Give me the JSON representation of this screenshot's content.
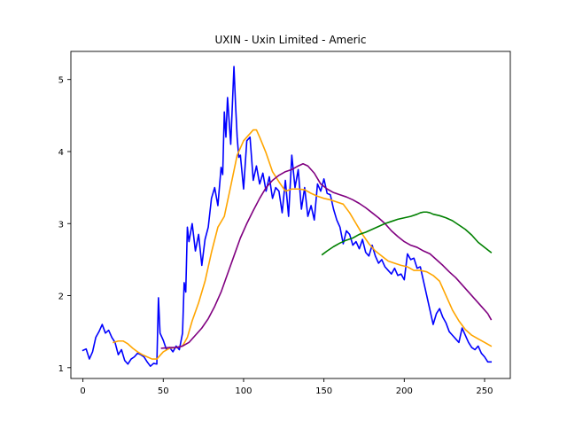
{
  "chart_data": {
    "type": "line",
    "title": "UXIN - Uxin Limited - Americ",
    "xlabel": "",
    "ylabel": "",
    "xlim": [
      -7.5,
      266
    ],
    "ylim": [
      0.85,
      5.39
    ],
    "x_ticks": [
      0,
      50,
      100,
      150,
      200,
      250
    ],
    "y_ticks": [
      1,
      2,
      3,
      4,
      5
    ],
    "grid": false,
    "legend": "none",
    "series": [
      {
        "color": "#0000ff",
        "x": [
          0,
          2,
          4,
          6,
          8,
          10,
          12,
          14,
          16,
          18,
          20,
          22,
          24,
          26,
          28,
          30,
          32,
          34,
          36,
          38,
          40,
          42,
          44,
          46,
          47,
          48,
          50,
          52,
          54,
          56,
          58,
          60,
          62,
          63,
          64,
          65,
          66,
          68,
          70,
          72,
          74,
          76,
          78,
          80,
          82,
          84,
          86,
          87,
          88,
          89,
          90,
          92,
          94,
          95,
          96,
          97,
          98,
          100,
          102,
          104,
          106,
          108,
          110,
          112,
          114,
          116,
          118,
          120,
          122,
          124,
          126,
          128,
          130,
          132,
          134,
          136,
          138,
          140,
          142,
          144,
          146,
          148,
          150,
          152,
          154,
          156,
          158,
          160,
          162,
          164,
          166,
          168,
          170,
          172,
          174,
          176,
          178,
          180,
          182,
          184,
          186,
          188,
          190,
          192,
          194,
          196,
          198,
          200,
          202,
          204,
          206,
          208,
          210,
          212,
          214,
          216,
          218,
          220,
          222,
          224,
          226,
          228,
          230,
          232,
          234,
          236,
          238,
          240,
          242,
          244,
          246,
          248,
          250,
          252,
          254
        ],
        "y": [
          1.24,
          1.26,
          1.12,
          1.22,
          1.42,
          1.5,
          1.6,
          1.48,
          1.52,
          1.42,
          1.35,
          1.18,
          1.25,
          1.1,
          1.05,
          1.12,
          1.15,
          1.2,
          1.18,
          1.15,
          1.08,
          1.02,
          1.06,
          1.05,
          1.97,
          1.48,
          1.38,
          1.25,
          1.28,
          1.22,
          1.3,
          1.25,
          1.48,
          2.18,
          2.05,
          2.95,
          2.75,
          3.0,
          2.62,
          2.85,
          2.42,
          2.78,
          2.95,
          3.35,
          3.5,
          3.25,
          3.78,
          3.68,
          4.55,
          4.2,
          4.75,
          4.1,
          5.18,
          4.65,
          4.2,
          3.92,
          3.95,
          3.48,
          4.15,
          4.2,
          3.6,
          3.8,
          3.55,
          3.7,
          3.45,
          3.65,
          3.35,
          3.5,
          3.45,
          3.15,
          3.6,
          3.1,
          3.95,
          3.5,
          3.75,
          3.2,
          3.5,
          3.1,
          3.25,
          3.05,
          3.55,
          3.45,
          3.62,
          3.42,
          3.4,
          3.2,
          3.05,
          2.95,
          2.72,
          2.9,
          2.85,
          2.7,
          2.75,
          2.65,
          2.78,
          2.6,
          2.55,
          2.7,
          2.55,
          2.45,
          2.5,
          2.4,
          2.35,
          2.3,
          2.38,
          2.28,
          2.3,
          2.22,
          2.58,
          2.5,
          2.52,
          2.38,
          2.4,
          2.2,
          2.0,
          1.8,
          1.6,
          1.75,
          1.82,
          1.7,
          1.62,
          1.5,
          1.45,
          1.4,
          1.35,
          1.55,
          1.45,
          1.35,
          1.28,
          1.25,
          1.3,
          1.2,
          1.15,
          1.08,
          1.08
        ]
      },
      {
        "color": "#ffa500",
        "x": [
          19,
          22,
          25,
          28,
          31,
          34,
          37,
          40,
          43,
          46,
          50,
          54,
          58,
          62,
          65,
          68,
          72,
          76,
          80,
          84,
          88,
          92,
          96,
          100,
          104,
          106,
          108,
          110,
          114,
          118,
          122,
          126,
          130,
          134,
          138,
          142,
          146,
          150,
          154,
          158,
          162,
          166,
          170,
          174,
          178,
          182,
          186,
          190,
          194,
          198,
          202,
          206,
          210,
          214,
          218,
          222,
          226,
          230,
          234,
          238,
          242,
          246,
          250,
          254
        ],
        "y": [
          1.35,
          1.37,
          1.37,
          1.33,
          1.27,
          1.22,
          1.18,
          1.15,
          1.12,
          1.12,
          1.22,
          1.27,
          1.28,
          1.3,
          1.42,
          1.65,
          1.9,
          2.2,
          2.6,
          2.95,
          3.1,
          3.52,
          3.95,
          4.15,
          4.25,
          4.3,
          4.3,
          4.2,
          3.98,
          3.72,
          3.58,
          3.45,
          3.48,
          3.48,
          3.47,
          3.42,
          3.38,
          3.35,
          3.33,
          3.3,
          3.27,
          3.15,
          3.0,
          2.85,
          2.72,
          2.62,
          2.55,
          2.48,
          2.45,
          2.42,
          2.4,
          2.35,
          2.35,
          2.33,
          2.28,
          2.2,
          2.0,
          1.8,
          1.65,
          1.53,
          1.45,
          1.4,
          1.35,
          1.3
        ]
      },
      {
        "color": "#800080",
        "x": [
          49,
          54,
          58,
          62,
          66,
          70,
          74,
          78,
          82,
          86,
          90,
          94,
          98,
          102,
          106,
          110,
          114,
          118,
          122,
          126,
          130,
          134,
          137,
          140,
          144,
          148,
          152,
          156,
          160,
          164,
          168,
          172,
          176,
          180,
          184,
          188,
          192,
          196,
          200,
          204,
          208,
          212,
          216,
          220,
          224,
          228,
          232,
          236,
          240,
          244,
          248,
          252,
          254
        ],
        "y": [
          1.27,
          1.28,
          1.28,
          1.3,
          1.35,
          1.45,
          1.55,
          1.68,
          1.85,
          2.05,
          2.3,
          2.55,
          2.8,
          3.0,
          3.18,
          3.35,
          3.5,
          3.6,
          3.67,
          3.72,
          3.75,
          3.8,
          3.83,
          3.8,
          3.7,
          3.55,
          3.48,
          3.43,
          3.4,
          3.37,
          3.33,
          3.28,
          3.22,
          3.15,
          3.08,
          3.0,
          2.9,
          2.82,
          2.75,
          2.7,
          2.67,
          2.62,
          2.58,
          2.5,
          2.42,
          2.33,
          2.25,
          2.15,
          2.05,
          1.95,
          1.85,
          1.75,
          1.67
        ]
      },
      {
        "color": "#008000",
        "x": [
          149,
          152,
          156,
          160,
          164,
          168,
          172,
          176,
          180,
          184,
          188,
          192,
          196,
          200,
          204,
          208,
          210,
          212,
          214,
          216,
          218,
          222,
          226,
          230,
          234,
          238,
          242,
          246,
          250,
          254
        ],
        "y": [
          2.57,
          2.62,
          2.68,
          2.73,
          2.77,
          2.8,
          2.85,
          2.88,
          2.92,
          2.96,
          3.0,
          3.03,
          3.06,
          3.08,
          3.1,
          3.13,
          3.15,
          3.16,
          3.16,
          3.15,
          3.13,
          3.11,
          3.08,
          3.04,
          2.98,
          2.92,
          2.84,
          2.74,
          2.67,
          2.6
        ]
      }
    ]
  }
}
